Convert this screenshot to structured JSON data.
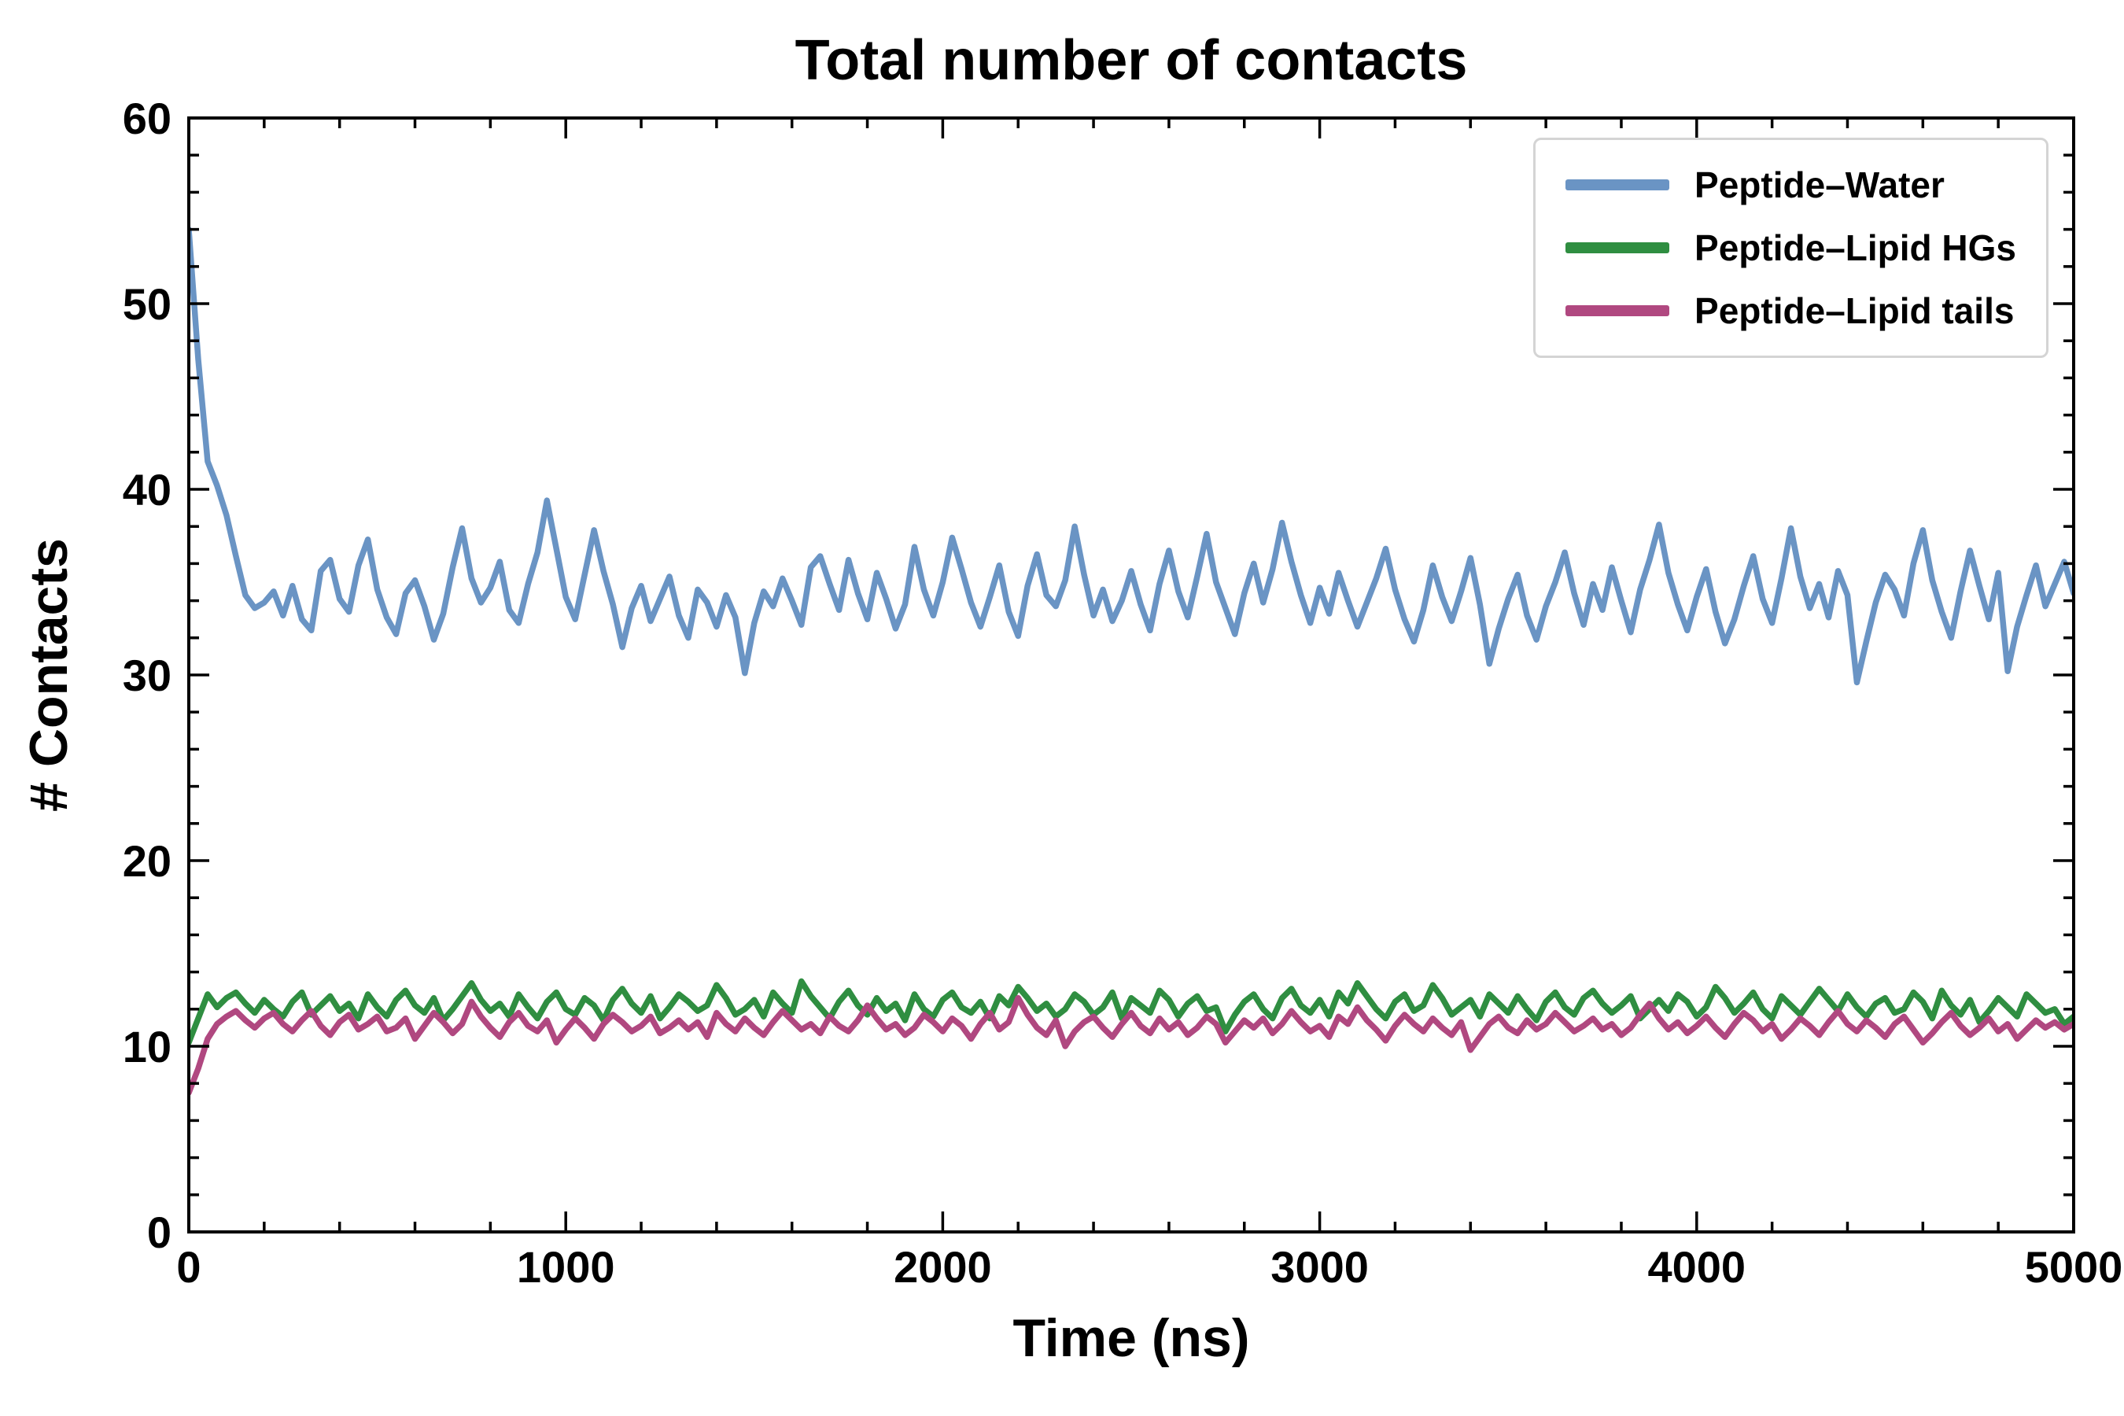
{
  "figure": {
    "background_color": "#ffffff",
    "axis_color": "#000000"
  },
  "chart_data": {
    "type": "line",
    "title": "Total number of contacts",
    "xlabel": "Time (ns)",
    "ylabel": "# Contacts",
    "xlim": [
      0,
      5000
    ],
    "ylim": [
      0,
      60
    ],
    "x_ticks": [
      0,
      1000,
      2000,
      3000,
      4000,
      5000
    ],
    "y_ticks": [
      0,
      10,
      20,
      30,
      40,
      50,
      60
    ],
    "x_minor_step": 200,
    "y_minor_step": 2,
    "grid": false,
    "legend_position": "upper right",
    "x_start": 0,
    "x_step": 25,
    "series": [
      {
        "name": "Peptide–Water",
        "color": "#6a94c4",
        "values": [
          54.0,
          47.0,
          41.5,
          40.2,
          38.6,
          36.4,
          34.3,
          33.6,
          33.9,
          34.5,
          33.2,
          34.8,
          33.0,
          32.4,
          35.6,
          36.2,
          34.1,
          33.4,
          35.9,
          37.3,
          34.6,
          33.1,
          32.2,
          34.4,
          35.1,
          33.7,
          31.9,
          33.3,
          35.8,
          37.9,
          35.2,
          33.9,
          34.7,
          36.1,
          33.5,
          32.8,
          34.9,
          36.6,
          39.4,
          36.8,
          34.2,
          33.0,
          35.4,
          37.8,
          35.6,
          33.8,
          31.5,
          33.6,
          34.8,
          32.9,
          34.1,
          35.3,
          33.2,
          32.0,
          34.6,
          33.9,
          32.6,
          34.3,
          33.1,
          30.1,
          32.8,
          34.5,
          33.7,
          35.2,
          34.0,
          32.7,
          35.8,
          36.4,
          34.9,
          33.5,
          36.2,
          34.4,
          33.0,
          35.5,
          34.1,
          32.5,
          33.8,
          36.9,
          34.6,
          33.2,
          35.0,
          37.4,
          35.7,
          33.9,
          32.6,
          34.2,
          35.9,
          33.4,
          32.1,
          34.8,
          36.5,
          34.3,
          33.7,
          35.1,
          38.0,
          35.4,
          33.2,
          34.6,
          32.9,
          34.0,
          35.6,
          33.8,
          32.4,
          34.9,
          36.7,
          34.5,
          33.1,
          35.3,
          37.6,
          35.0,
          33.6,
          32.2,
          34.4,
          36.0,
          33.9,
          35.7,
          38.2,
          36.1,
          34.3,
          32.8,
          34.7,
          33.3,
          35.5,
          34.0,
          32.6,
          33.9,
          35.2,
          36.8,
          34.6,
          33.0,
          31.8,
          33.5,
          35.9,
          34.2,
          32.9,
          34.5,
          36.3,
          33.8,
          30.6,
          32.5,
          34.1,
          35.4,
          33.2,
          31.9,
          33.7,
          35.0,
          36.6,
          34.4,
          32.7,
          34.9,
          33.5,
          35.8,
          34.0,
          32.3,
          34.6,
          36.2,
          38.1,
          35.5,
          33.8,
          32.4,
          34.2,
          35.7,
          33.4,
          31.7,
          33.0,
          34.8,
          36.4,
          34.1,
          32.8,
          35.2,
          37.9,
          35.3,
          33.6,
          34.9,
          33.1,
          35.6,
          34.3,
          29.6,
          31.8,
          33.9,
          35.4,
          34.6,
          33.2,
          36.0,
          37.8,
          35.1,
          33.4,
          32.0,
          34.5,
          36.7,
          34.8,
          33.0,
          35.5,
          30.2,
          32.6,
          34.3,
          35.9,
          33.7,
          34.9,
          36.1,
          34.4
        ]
      },
      {
        "name": "Peptide–Lipid HGs",
        "color": "#2f8e41",
        "values": [
          10.2,
          11.5,
          12.8,
          12.1,
          12.6,
          12.9,
          12.3,
          11.8,
          12.5,
          12.0,
          11.6,
          12.4,
          12.9,
          11.7,
          12.2,
          12.7,
          11.9,
          12.3,
          11.5,
          12.8,
          12.1,
          11.6,
          12.5,
          13.0,
          12.2,
          11.8,
          12.6,
          11.4,
          12.0,
          12.7,
          13.4,
          12.5,
          11.9,
          12.3,
          11.6,
          12.8,
          12.1,
          11.5,
          12.4,
          12.9,
          12.0,
          11.7,
          12.6,
          12.2,
          11.4,
          12.5,
          13.1,
          12.3,
          11.8,
          12.7,
          11.5,
          12.1,
          12.8,
          12.4,
          11.9,
          12.2,
          13.3,
          12.6,
          11.7,
          12.0,
          12.5,
          11.6,
          12.9,
          12.3,
          11.8,
          13.5,
          12.7,
          12.1,
          11.5,
          12.4,
          13.0,
          12.2,
          11.7,
          12.6,
          11.9,
          12.3,
          11.4,
          12.8,
          12.0,
          11.6,
          12.5,
          12.9,
          12.1,
          11.8,
          12.4,
          11.5,
          12.7,
          12.2,
          13.2,
          12.6,
          11.9,
          12.3,
          11.6,
          12.0,
          12.8,
          12.4,
          11.7,
          12.1,
          12.9,
          11.5,
          12.6,
          12.2,
          11.8,
          13.0,
          12.5,
          11.6,
          12.3,
          12.7,
          11.9,
          12.1,
          10.8,
          11.7,
          12.4,
          12.8,
          12.0,
          11.5,
          12.6,
          13.1,
          12.2,
          11.8,
          12.5,
          11.6,
          12.9,
          12.3,
          13.4,
          12.7,
          12.0,
          11.5,
          12.4,
          12.8,
          11.9,
          12.2,
          13.3,
          12.6,
          11.7,
          12.1,
          12.5,
          11.6,
          12.8,
          12.3,
          11.8,
          12.7,
          12.0,
          11.4,
          12.4,
          12.9,
          12.1,
          11.7,
          12.6,
          13.0,
          12.3,
          11.8,
          12.2,
          12.7,
          11.5,
          12.0,
          12.5,
          11.9,
          12.8,
          12.4,
          11.6,
          12.1,
          13.2,
          12.6,
          11.8,
          12.3,
          12.9,
          12.0,
          11.5,
          12.7,
          12.2,
          11.7,
          12.4,
          13.1,
          12.5,
          11.9,
          12.8,
          12.1,
          11.6,
          12.3,
          12.6,
          11.8,
          12.0,
          12.9,
          12.4,
          11.5,
          13.0,
          12.2,
          11.7,
          12.5,
          11.3,
          11.9,
          12.6,
          12.1,
          11.6,
          12.8,
          12.3,
          11.8,
          12.0,
          11.2,
          11.6
        ]
      },
      {
        "name": "Peptide–Lipid tails",
        "color": "#b04880",
        "values": [
          7.5,
          8.8,
          10.4,
          11.2,
          11.6,
          11.9,
          11.4,
          11.0,
          11.5,
          11.8,
          11.2,
          10.8,
          11.4,
          11.9,
          11.1,
          10.6,
          11.3,
          11.7,
          10.9,
          11.2,
          11.6,
          10.8,
          11.0,
          11.5,
          10.4,
          11.1,
          11.8,
          11.3,
          10.7,
          11.2,
          12.4,
          11.6,
          11.0,
          10.5,
          11.3,
          11.8,
          11.1,
          10.8,
          11.4,
          10.2,
          10.9,
          11.5,
          11.0,
          10.4,
          11.2,
          11.7,
          11.3,
          10.8,
          11.1,
          11.6,
          10.7,
          11.0,
          11.4,
          10.9,
          11.3,
          10.5,
          11.8,
          11.2,
          10.8,
          11.5,
          11.0,
          10.6,
          11.3,
          11.9,
          11.4,
          10.9,
          11.2,
          10.7,
          11.6,
          11.1,
          10.8,
          11.4,
          12.2,
          11.5,
          10.9,
          11.2,
          10.6,
          11.0,
          11.7,
          11.3,
          10.8,
          11.5,
          11.1,
          10.4,
          11.2,
          11.8,
          10.9,
          11.3,
          12.6,
          11.7,
          11.0,
          10.6,
          11.4,
          10.0,
          10.8,
          11.3,
          11.6,
          11.0,
          10.5,
          11.2,
          11.8,
          11.1,
          10.7,
          11.5,
          10.9,
          11.3,
          10.6,
          11.0,
          11.6,
          11.2,
          10.2,
          10.8,
          11.4,
          11.0,
          11.5,
          10.7,
          11.2,
          11.9,
          11.3,
          10.8,
          11.1,
          10.5,
          11.6,
          11.2,
          12.1,
          11.4,
          10.9,
          10.3,
          11.1,
          11.7,
          11.2,
          10.8,
          11.5,
          11.0,
          10.6,
          11.3,
          9.8,
          10.5,
          11.2,
          11.6,
          11.0,
          10.7,
          11.4,
          10.9,
          11.2,
          11.8,
          11.3,
          10.8,
          11.1,
          11.5,
          10.9,
          11.2,
          10.6,
          11.0,
          11.7,
          12.3,
          11.5,
          10.9,
          11.3,
          10.7,
          11.1,
          11.6,
          11.0,
          10.5,
          11.2,
          11.8,
          11.4,
          10.8,
          11.2,
          10.4,
          10.9,
          11.5,
          11.1,
          10.6,
          11.3,
          11.9,
          11.2,
          10.8,
          11.4,
          11.0,
          10.5,
          11.2,
          11.6,
          10.9,
          10.2,
          10.7,
          11.3,
          11.8,
          11.1,
          10.6,
          11.0,
          11.5,
          10.8,
          11.2,
          10.4,
          10.9,
          11.4,
          11.0,
          11.3,
          10.9,
          11.2
        ]
      }
    ]
  }
}
